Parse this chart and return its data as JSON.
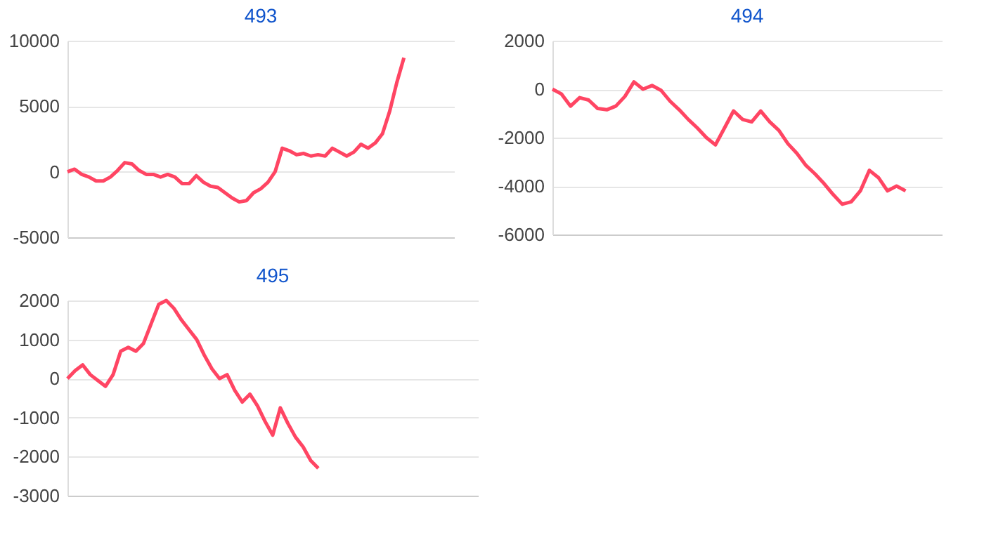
{
  "chart_data": [
    {
      "type": "line",
      "title": "493",
      "color": "#ff4563",
      "grid": "y",
      "tick_labels": "y",
      "ylim": [
        -5000,
        10000
      ],
      "yticks": [
        -5000,
        0,
        5000,
        10000
      ],
      "categories": [
        null,
        null,
        null,
        null,
        null,
        null,
        null,
        null,
        null,
        null,
        null,
        null,
        null,
        null,
        null,
        null,
        null,
        null,
        null,
        null,
        null,
        null,
        null,
        null,
        null,
        null,
        null,
        null,
        null,
        null,
        null,
        null,
        null,
        null,
        null,
        null,
        null,
        null,
        null,
        null,
        null,
        null,
        null,
        null,
        null,
        null,
        null,
        null,
        null,
        null,
        null,
        null,
        null,
        null,
        null
      ],
      "values": [
        0,
        200,
        -200,
        -400,
        -700,
        -700,
        -400,
        100,
        700,
        600,
        100,
        -200,
        -200,
        -400,
        -200,
        -400,
        -900,
        -900,
        -300,
        -800,
        -1100,
        -1200,
        -1600,
        -2000,
        -2300,
        -2200,
        -1600,
        -1300,
        -800,
        0,
        1800,
        1600,
        1300,
        1400,
        1200,
        1300,
        1200,
        1800,
        1500,
        1200,
        1500,
        2100,
        1800,
        2200,
        2900,
        4600,
        6800,
        8700,
        null,
        null,
        null,
        null,
        null,
        null,
        null
      ]
    },
    {
      "type": "line",
      "title": "494",
      "color": "#ff4563",
      "grid": "y",
      "tick_labels": "y",
      "ylim": [
        -6000,
        2000
      ],
      "yticks": [
        -6000,
        -4000,
        -2000,
        0,
        2000
      ],
      "categories": [
        null,
        null,
        null,
        null,
        null,
        null,
        null,
        null,
        null,
        null,
        null,
        null,
        null,
        null,
        null,
        null,
        null,
        null,
        null,
        null,
        null,
        null,
        null,
        null,
        null,
        null,
        null,
        null,
        null,
        null,
        null,
        null,
        null,
        null,
        null,
        null,
        null,
        null,
        null,
        null,
        null,
        null,
        null,
        null
      ],
      "values": [
        0,
        -200,
        -700,
        -350,
        -450,
        -800,
        -850,
        -700,
        -300,
        300,
        0,
        150,
        -50,
        -500,
        -850,
        -1250,
        -1600,
        -2000,
        -2300,
        -1600,
        -900,
        -1250,
        -1350,
        -900,
        -1350,
        -1700,
        -2250,
        -2650,
        -3150,
        -3500,
        -3900,
        -4350,
        -4750,
        -4650,
        -4200,
        -3350,
        -3650,
        -4200,
        -4000,
        -4200,
        null,
        null,
        null,
        null
      ]
    },
    {
      "type": "line",
      "title": "495",
      "color": "#ff4563",
      "grid": "y",
      "tick_labels": "y",
      "ylim": [
        -3000,
        2000
      ],
      "yticks": [
        -3000,
        -2000,
        -1000,
        0,
        1000,
        2000
      ],
      "categories": [
        null,
        null,
        null,
        null,
        null,
        null,
        null,
        null,
        null,
        null,
        null,
        null,
        null,
        null,
        null,
        null,
        null,
        null,
        null,
        null,
        null,
        null,
        null,
        null,
        null,
        null,
        null,
        null,
        null,
        null,
        null,
        null,
        null,
        null,
        null,
        null,
        null,
        null,
        null,
        null,
        null,
        null,
        null,
        null,
        null,
        null,
        null,
        null,
        null,
        null,
        null,
        null,
        null,
        null,
        null
      ],
      "values": [
        0,
        200,
        350,
        100,
        -50,
        -200,
        100,
        700,
        800,
        700,
        900,
        1400,
        1900,
        2000,
        1800,
        1500,
        1250,
        1000,
        600,
        250,
        0,
        100,
        -300,
        -600,
        -400,
        -700,
        -1100,
        -1450,
        -750,
        -1150,
        -1500,
        -1750,
        -2100,
        -2300,
        null,
        null,
        null,
        null,
        null,
        null,
        null,
        null,
        null,
        null,
        null,
        null,
        null,
        null,
        null,
        null,
        null,
        null,
        null,
        null,
        null
      ]
    }
  ]
}
